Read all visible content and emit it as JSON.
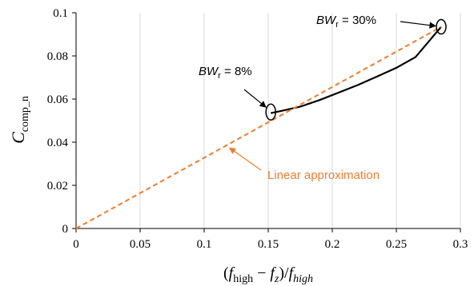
{
  "chart_data": {
    "type": "line",
    "title": "",
    "xlabel": "(f_high − f_z)/f_high",
    "ylabel": "C_comp_n",
    "xlim": [
      0,
      0.3
    ],
    "ylim": [
      0,
      0.1
    ],
    "xticks": [
      0,
      0.05,
      0.1,
      0.15,
      0.2,
      0.25,
      0.3
    ],
    "yticks": [
      0,
      0.02,
      0.04,
      0.06,
      0.08,
      0.1
    ],
    "xtick_labels": [
      "0",
      "0.05",
      "0.1",
      "0.15",
      "0.2",
      "0.25",
      "0.3"
    ],
    "ytick_labels": [
      "0",
      "0.02",
      "0.04",
      "0.06",
      "0.08",
      "0.1"
    ],
    "grid": "vertical",
    "series": [
      {
        "style": "solid",
        "color": "#000000",
        "x": [
          0.152,
          0.16,
          0.175,
          0.19,
          0.205,
          0.22,
          0.235,
          0.25,
          0.265,
          0.285
        ],
        "y": [
          0.0535,
          0.0545,
          0.0565,
          0.0595,
          0.063,
          0.0665,
          0.0705,
          0.0745,
          0.0795,
          0.0935
        ]
      },
      {
        "name": "Linear approximation",
        "style": "dashed",
        "color": "#ED7D31",
        "x": [
          0,
          0.285
        ],
        "y": [
          0,
          0.0935
        ]
      }
    ],
    "annotations": [
      {
        "id": "bw8",
        "text_main": "BW",
        "text_sub": "r",
        "text_rest": " = 8%",
        "target_x": 0.152,
        "target_y": 0.054
      },
      {
        "id": "bw30",
        "text_main": "BW",
        "text_sub": "r",
        "text_rest": " = 30%",
        "target_x": 0.285,
        "target_y": 0.0935
      },
      {
        "id": "linear",
        "text": "Linear approximation",
        "color": "#ED7D31",
        "target_x": 0.116,
        "target_y": 0.0385
      }
    ]
  }
}
